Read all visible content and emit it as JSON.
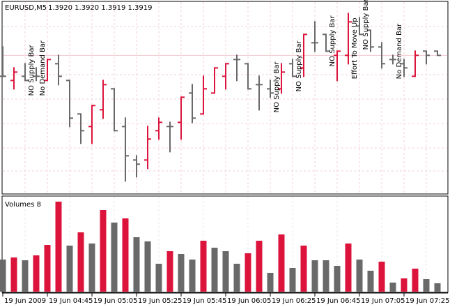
{
  "header": {
    "symbol": "EURUSD,M5",
    "ohlc": "1.3920 1.3920 1.3919 1.3919"
  },
  "volume_panel": {
    "title": "Volumes 8"
  },
  "colors": {
    "up": "#dc143c",
    "down": "#696969",
    "grid": "#f0d0d8",
    "price_line": "#f2c8d0",
    "background": "#ffffff"
  },
  "chart_data": [
    {
      "type": "ohlc",
      "title": "EURUSD,M5",
      "grid": true,
      "last_price": 1.3919,
      "bars": [
        {
          "c": "down",
          "o": 1.3914,
          "h": 1.3921,
          "l": 1.3914,
          "cl": 1.3914
        },
        {
          "c": "up",
          "o": 1.3913,
          "h": 1.3916,
          "l": 1.3911,
          "cl": 1.3915
        },
        {
          "c": "down",
          "o": 1.3914,
          "h": 1.3917,
          "l": 1.3913,
          "cl": 1.3913
        },
        {
          "c": "down",
          "o": 1.3914,
          "h": 1.3916,
          "l": 1.3913,
          "cl": 1.3914
        },
        {
          "c": "up",
          "o": 1.3913,
          "h": 1.3918,
          "l": 1.3913,
          "cl": 1.3918
        },
        {
          "c": "down",
          "o": 1.3917,
          "h": 1.3919,
          "l": 1.3912,
          "cl": 1.3914
        },
        {
          "c": "down",
          "o": 1.3913,
          "h": 1.3913,
          "l": 1.3902,
          "cl": 1.3904
        },
        {
          "c": "down",
          "o": 1.3905,
          "h": 1.3905,
          "l": 1.3898,
          "cl": 1.3901
        },
        {
          "c": "up",
          "o": 1.3902,
          "h": 1.3907,
          "l": 1.3898,
          "cl": 1.3907
        },
        {
          "c": "up",
          "o": 1.3906,
          "h": 1.3913,
          "l": 1.3904,
          "cl": 1.3912
        },
        {
          "c": "down",
          "o": 1.3911,
          "h": 1.3911,
          "l": 1.3901,
          "cl": 1.3901
        },
        {
          "c": "down",
          "o": 1.3902,
          "h": 1.3904,
          "l": 1.3889,
          "cl": 1.3895
        },
        {
          "c": "down",
          "o": 1.3894,
          "h": 1.3895,
          "l": 1.389,
          "cl": 1.3893
        },
        {
          "c": "up",
          "o": 1.3894,
          "h": 1.3902,
          "l": 1.3892,
          "cl": 1.3899
        },
        {
          "c": "up",
          "o": 1.3901,
          "h": 1.3904,
          "l": 1.3899,
          "cl": 1.3903
        },
        {
          "c": "down",
          "o": 1.3902,
          "h": 1.3903,
          "l": 1.3896,
          "cl": 1.3902
        },
        {
          "c": "up",
          "o": 1.3903,
          "h": 1.3909,
          "l": 1.3899,
          "cl": 1.3909
        },
        {
          "c": "down",
          "o": 1.391,
          "h": 1.3912,
          "l": 1.3903,
          "cl": 1.3904
        },
        {
          "c": "up",
          "o": 1.3905,
          "h": 1.3914,
          "l": 1.3905,
          "cl": 1.3911
        },
        {
          "c": "up",
          "o": 1.391,
          "h": 1.3916,
          "l": 1.391,
          "cl": 1.3916
        },
        {
          "c": "up",
          "o": 1.3914,
          "h": 1.3917,
          "l": 1.3911,
          "cl": 1.3917
        },
        {
          "c": "down",
          "o": 1.3918,
          "h": 1.3919,
          "l": 1.3913,
          "cl": 1.3918
        },
        {
          "c": "down",
          "o": 1.3917,
          "h": 1.3917,
          "l": 1.3911,
          "cl": 1.3911
        },
        {
          "c": "down",
          "o": 1.3912,
          "h": 1.3914,
          "l": 1.3906,
          "cl": 1.3912
        },
        {
          "c": "down",
          "o": 1.3911,
          "h": 1.3913,
          "l": 1.3909,
          "cl": 1.391
        },
        {
          "c": "up",
          "o": 1.3911,
          "h": 1.3917,
          "l": 1.391,
          "cl": 1.3915
        },
        {
          "c": "down",
          "o": 1.3917,
          "h": 1.3918,
          "l": 1.3914,
          "cl": 1.3914
        },
        {
          "c": "up",
          "o": 1.3916,
          "h": 1.3924,
          "l": 1.3914,
          "cl": 1.3924
        },
        {
          "c": "down",
          "o": 1.3922,
          "h": 1.3927,
          "l": 1.392,
          "cl": 1.3922
        },
        {
          "c": "down",
          "o": 1.3924,
          "h": 1.3924,
          "l": 1.392,
          "cl": 1.392
        },
        {
          "c": "up",
          "o": 1.3919,
          "h": 1.392,
          "l": 1.3913,
          "cl": 1.392
        },
        {
          "c": "up",
          "o": 1.3919,
          "h": 1.3929,
          "l": 1.3917,
          "cl": 1.3927
        },
        {
          "c": "down",
          "o": 1.3926,
          "h": 1.3928,
          "l": 1.3924,
          "cl": 1.3924
        },
        {
          "c": "down",
          "o": 1.3925,
          "h": 1.3925,
          "l": 1.392,
          "cl": 1.3921
        },
        {
          "c": "down",
          "o": 1.3921,
          "h": 1.3922,
          "l": 1.3916,
          "cl": 1.3917
        },
        {
          "c": "down",
          "o": 1.3918,
          "h": 1.3919,
          "l": 1.3917,
          "cl": 1.3918
        },
        {
          "c": "down",
          "o": 1.3917,
          "h": 1.3918,
          "l": 1.3914,
          "cl": 1.3916
        },
        {
          "c": "up",
          "o": 1.3914,
          "h": 1.392,
          "l": 1.3914,
          "cl": 1.3919
        },
        {
          "c": "down",
          "o": 1.392,
          "h": 1.392,
          "l": 1.3917,
          "cl": 1.3919
        },
        {
          "c": "down",
          "o": 1.392,
          "h": 1.392,
          "l": 1.3919,
          "cl": 1.3919
        }
      ],
      "annotations": [
        {
          "bar": 2,
          "text": "NO Supply Bar"
        },
        {
          "bar": 3,
          "text": "No Demand Bar"
        },
        {
          "bar": 24,
          "text": "NO Supply Bar"
        },
        {
          "bar": 26,
          "text": "NO Supply Bar"
        },
        {
          "bar": 29,
          "text": "NO Supply Bar"
        },
        {
          "bar": 31,
          "text": "Effort To Move Up"
        },
        {
          "bar": 32,
          "text": "NO Supply Bar"
        },
        {
          "bar": 35,
          "text": "No Demand Bar"
        }
      ]
    },
    {
      "type": "bar",
      "title": "Volumes 8",
      "values": [
        46,
        49,
        45,
        52,
        67,
        129,
        66,
        85,
        69,
        117,
        99,
        105,
        78,
        72,
        40,
        58,
        54,
        46,
        73,
        63,
        58,
        40,
        55,
        73,
        27,
        82,
        34,
        66,
        45,
        45,
        37,
        69,
        46,
        30,
        43,
        13,
        19,
        33,
        18,
        12
      ],
      "colors": [
        "down",
        "up",
        "down",
        "up",
        "up",
        "up",
        "down",
        "up",
        "down",
        "up",
        "down",
        "up",
        "down",
        "down",
        "down",
        "up",
        "down",
        "down",
        "up",
        "down",
        "down",
        "down",
        "up",
        "up",
        "down",
        "up",
        "down",
        "up",
        "down",
        "down",
        "down",
        "up",
        "down",
        "down",
        "up",
        "down",
        "up",
        "up",
        "down",
        "down"
      ]
    }
  ],
  "time_axis": {
    "labels": [
      "19 Jun 2009",
      "19 Jun 04:45",
      "19 Jun 05:05",
      "19 Jun 05:25",
      "19 Jun 05:45",
      "19 Jun 06:05",
      "19 Jun 06:25",
      "19 Jun 06:45",
      "19 Jun 07:05",
      "19 Jun 07:25"
    ]
  }
}
